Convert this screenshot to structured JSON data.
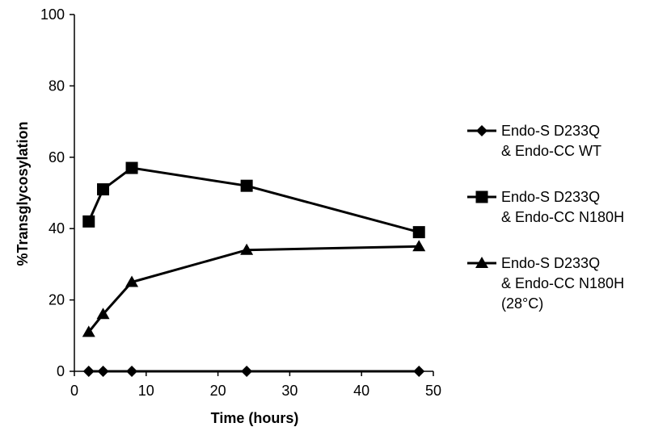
{
  "chart_data": {
    "type": "line",
    "title": "",
    "xlabel": "Time (hours)",
    "ylabel": "%Transglycosylation",
    "xlim": [
      0,
      50
    ],
    "ylim": [
      0,
      100
    ],
    "xticks": [
      0,
      10,
      20,
      30,
      40,
      50
    ],
    "yticks": [
      0,
      20,
      40,
      60,
      80,
      100
    ],
    "grid": false,
    "legend_position": "right",
    "x": [
      2,
      4,
      8,
      24,
      48
    ],
    "series": [
      {
        "name_lines": [
          "Endo-S D233Q",
          "& Endo-CC WT"
        ],
        "marker": "diamond",
        "color": "#000000",
        "values": [
          0,
          0,
          0,
          0,
          0
        ]
      },
      {
        "name_lines": [
          "Endo-S D233Q",
          "& Endo-CC N180H"
        ],
        "marker": "square",
        "color": "#000000",
        "values": [
          42,
          51,
          57,
          52,
          39
        ]
      },
      {
        "name_lines": [
          "Endo-S D233Q",
          "& Endo-CC N180H",
          "(28°C)"
        ],
        "marker": "triangle",
        "color": "#000000",
        "values": [
          11,
          16,
          25,
          34,
          35
        ]
      }
    ]
  }
}
